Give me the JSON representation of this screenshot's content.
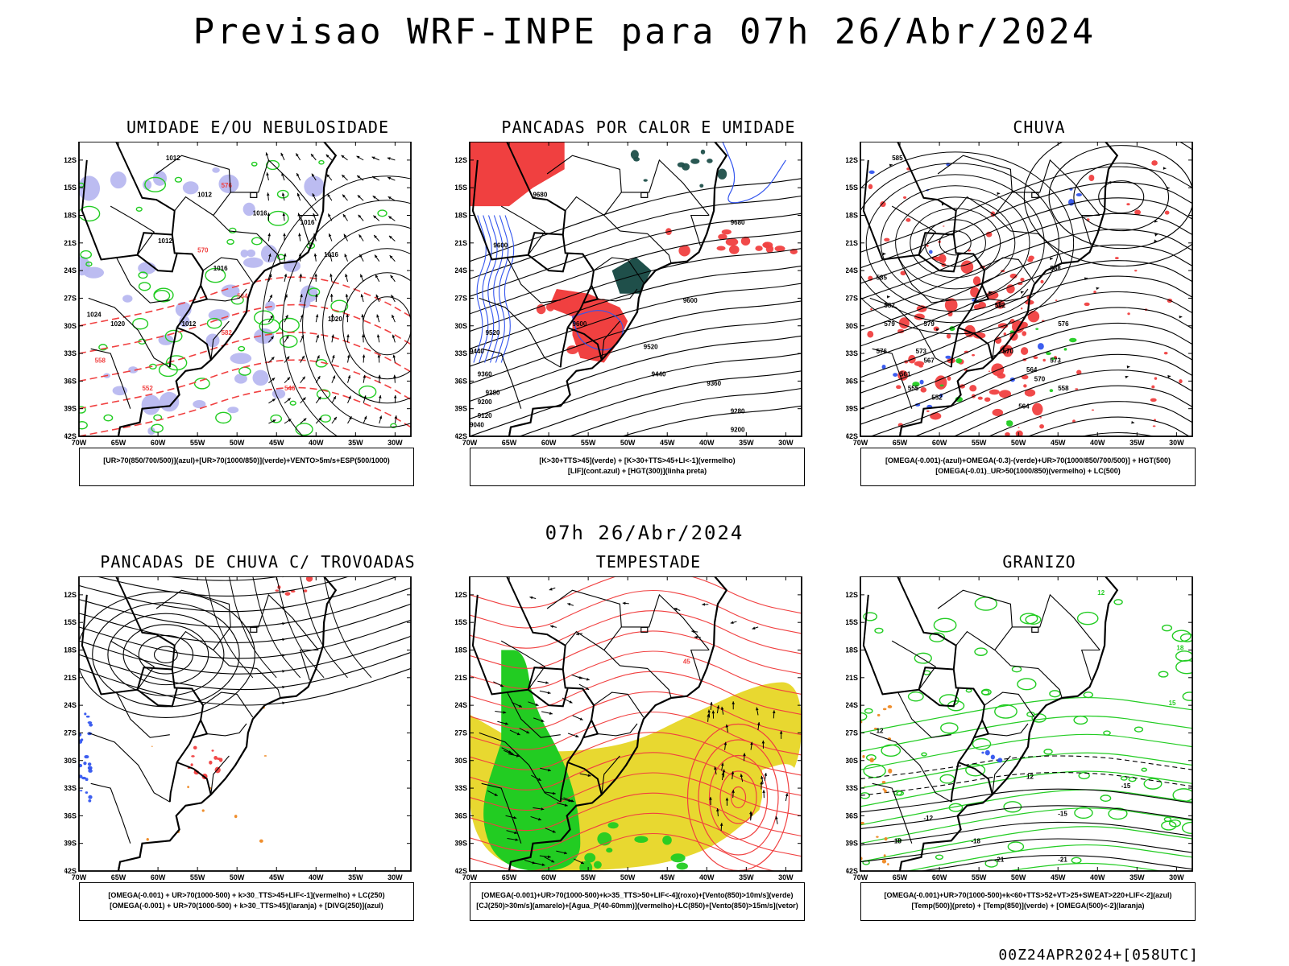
{
  "title": "Previsao WRF-INPE  para 07h 26/Abr/2024",
  "mid_date": "07h 26/Abr/2024",
  "footer_run": "00Z24APR2024+[058UTC]",
  "colors": {
    "red": "#f04040",
    "green": "#22cc22",
    "blue": "#3355ee",
    "lavender": "#b8b8f0",
    "dark_teal": "#1f4f4a",
    "yellow": "#e8d830",
    "orange": "#ee8822",
    "black": "#000000"
  },
  "axis": {
    "lat_labels": [
      "12S",
      "15S",
      "18S",
      "21S",
      "24S",
      "27S",
      "30S",
      "33S",
      "36S",
      "39S",
      "42S"
    ],
    "lon_labels": [
      "70W",
      "65W",
      "60W",
      "55W",
      "50W",
      "45W",
      "40W",
      "35W",
      "30W"
    ]
  },
  "panels": [
    {
      "title": "UMIDADE E/OU NEBULOSIDADE",
      "legend": [
        "[UR>70(850/700/500)](azul)+[UR>70(1000/850)](verde)+VENTO>5m/s+ESP(500/1000)"
      ],
      "contour_labels": [
        "1012",
        "1012",
        "1016",
        "1016",
        "1016",
        "1020",
        "1012",
        "1016",
        "1012",
        "1020",
        "1024",
        "576",
        "570",
        "564",
        "558",
        "552",
        "546",
        "582"
      ],
      "icons": [
        "wind-vector-icon",
        "humidity-shading-icon"
      ]
    },
    {
      "title": "PANCADAS POR CALOR E UMIDADE",
      "legend": [
        "[K>30+TTS>45](verde) + [K>30+TTS>45+LI<-1](vermelho)",
        "[LIF](cont.azul) + [HGT(300)](linha preta)"
      ],
      "contour_labels": [
        "9680",
        "9680",
        "9600",
        "9600",
        "9600",
        "9520",
        "9520",
        "9440",
        "9440",
        "9360",
        "9360",
        "9280",
        "9280",
        "9200",
        "9200",
        "9120",
        "9040"
      ],
      "icons": [
        "convection-shading-icon"
      ]
    },
    {
      "title": "CHUVA",
      "legend": [
        "[OMEGA(-0.001)-(azul)+OMEGA(-0.3)-(verde)+UR>70(1000/850/700/500)] + HGT(500)",
        "[OMEGA(-0.01)_UR>50(1000/850)(vermelho) + LC(500)"
      ],
      "contour_labels": [
        "585",
        "588",
        "582",
        "579",
        "576",
        "573",
        "570",
        "567",
        "564",
        "561",
        "558",
        "555",
        "552",
        "585",
        "582",
        "579",
        "576",
        "573",
        "570",
        "564"
      ],
      "icons": [
        "rain-shading-icon",
        "streamline-icon"
      ]
    },
    {
      "title": "PANCADAS DE CHUVA C/ TROVOADAS",
      "legend": [
        "[OMEGA(-0.001) + UR>70(1000-500) + k>30_TTS>45+LIF<-1](vermelho) + LC(250)",
        "[OMEGA(-0.001) + UR>70(1000-500) + k>30_TTS>45](laranja) + [DIVG(250)](azul)"
      ],
      "contour_labels": [],
      "icons": [
        "thunderstorm-shading-icon",
        "streamline-icon"
      ]
    },
    {
      "title": "TEMPESTADE",
      "legend": [
        "[OMEGA(-0.001)+UR>70(1000-500)+k>35_TTS>50+LIF<-4](roxo)+[Vento(850)>10m/s](verde)",
        "[CJ(250)>30m/s](amarelo)+[Agua_P(40-60mm)](vermelho)+LC(850)+[Vento(850)>15m/s](vetor)"
      ],
      "contour_labels": [
        "45"
      ],
      "icons": [
        "jet-shading-icon",
        "wind-vector-icon"
      ]
    },
    {
      "title": "GRANIZO",
      "legend": [
        "[OMEGA(-0.001)+UR>70(1000-500)+k<60+TTS>52+VT>25+SWEAT>220+LIF<-2](azul)",
        "[Temp(500)](preto) + [Temp(850)](verde) + [OMEGA(500)<-2](laranja)"
      ],
      "contour_labels": [
        "12",
        "12",
        "-12",
        "-15",
        "-15",
        "-18",
        "-18",
        "-21",
        "-21",
        "12",
        "15",
        "18"
      ],
      "icons": [
        "hail-shading-icon"
      ]
    }
  ]
}
